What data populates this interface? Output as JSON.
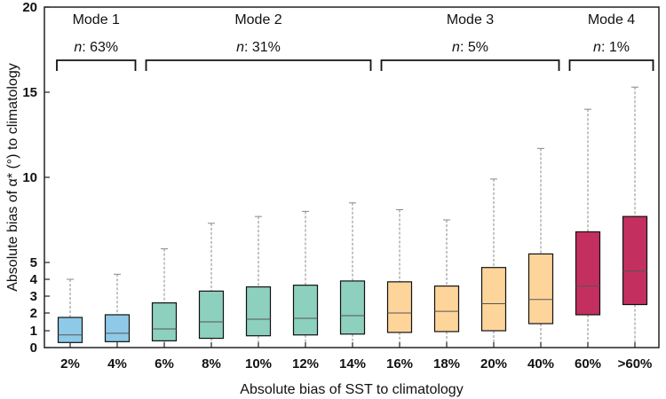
{
  "chart_data": {
    "type": "box",
    "xlabel": "Absolute bias of SST to climatology",
    "ylabel": "Absolute bias of α* (°) to climatology",
    "ylim": [
      0,
      20
    ],
    "y_ticks": [
      0,
      1,
      2,
      3,
      4,
      5,
      10,
      15,
      20
    ],
    "y_tick_labels": [
      "0",
      "1",
      "2",
      "3",
      "4",
      "5",
      "10",
      "15",
      "20"
    ],
    "categories": [
      "2%",
      "4%",
      "6%",
      "8%",
      "10%",
      "12%",
      "14%",
      "16%",
      "18%",
      "20%",
      "40%",
      "60%",
      ">60%"
    ],
    "boxes": [
      {
        "q1": 0.3,
        "median": 0.75,
        "q3": 1.75,
        "whisker_low": 0,
        "whisker_high": 4.0,
        "group": 0
      },
      {
        "q1": 0.35,
        "median": 0.85,
        "q3": 1.9,
        "whisker_low": 0,
        "whisker_high": 4.3,
        "group": 0
      },
      {
        "q1": 0.4,
        "median": 1.1,
        "q3": 2.6,
        "whisker_low": 0,
        "whisker_high": 5.8,
        "group": 1
      },
      {
        "q1": 0.55,
        "median": 1.5,
        "q3": 3.3,
        "whisker_low": 0,
        "whisker_high": 7.3,
        "group": 1
      },
      {
        "q1": 0.7,
        "median": 1.65,
        "q3": 3.55,
        "whisker_low": 0,
        "whisker_high": 7.7,
        "group": 1
      },
      {
        "q1": 0.75,
        "median": 1.7,
        "q3": 3.65,
        "whisker_low": 0,
        "whisker_high": 8.0,
        "group": 1
      },
      {
        "q1": 0.8,
        "median": 1.85,
        "q3": 3.9,
        "whisker_low": 0,
        "whisker_high": 8.5,
        "group": 1
      },
      {
        "q1": 0.9,
        "median": 2.0,
        "q3": 3.85,
        "whisker_low": 0,
        "whisker_high": 8.1,
        "group": 2
      },
      {
        "q1": 0.95,
        "median": 2.1,
        "q3": 3.6,
        "whisker_low": 0,
        "whisker_high": 7.5,
        "group": 2
      },
      {
        "q1": 1.0,
        "median": 2.55,
        "q3": 4.7,
        "whisker_low": 0,
        "whisker_high": 9.9,
        "group": 2
      },
      {
        "q1": 1.4,
        "median": 2.8,
        "q3": 5.5,
        "whisker_low": 0,
        "whisker_high": 11.7,
        "group": 2
      },
      {
        "q1": 1.9,
        "median": 3.6,
        "q3": 6.8,
        "whisker_low": 0,
        "whisker_high": 14.0,
        "group": 3
      },
      {
        "q1": 2.5,
        "median": 4.5,
        "q3": 7.7,
        "whisker_low": 0,
        "whisker_high": 15.3,
        "group": 3
      }
    ],
    "modes": [
      {
        "label": "Mode 1",
        "n": ": 63%",
        "from": 0,
        "to": 1
      },
      {
        "label": "Mode 2",
        "n": ": 31%",
        "from": 2,
        "to": 6
      },
      {
        "label": "Mode 3",
        "n": ": 5%",
        "from": 7,
        "to": 10
      },
      {
        "label": "Mode 4",
        "n": ": 1%",
        "from": 11,
        "to": 12
      }
    ],
    "n_prefix": "n",
    "group_colors": [
      "#8fc9e8",
      "#8dd0bd",
      "#fdd49a",
      "#c3305f"
    ],
    "median_color": "#555555",
    "whisker_color": "#888888"
  }
}
